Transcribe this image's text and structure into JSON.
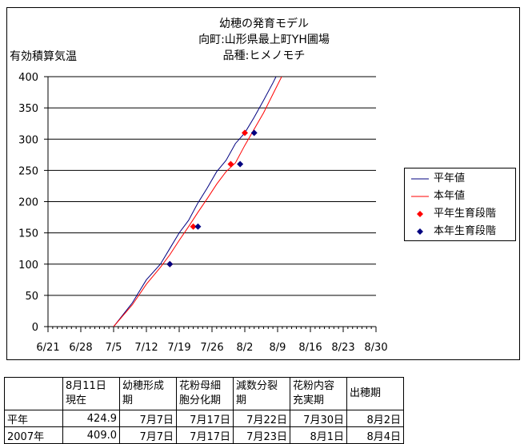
{
  "chart_data": {
    "type": "line",
    "title_lines": [
      "幼穂の発育モデル",
      "向町:山形県最上町YH圃場",
      "品種:ヒメノモチ"
    ],
    "ylabel": "有効積算気温",
    "xlabel": "",
    "ylim": [
      0,
      400
    ],
    "y_ticks": [
      0,
      50,
      100,
      150,
      200,
      250,
      300,
      350,
      400
    ],
    "x_tick_labels": [
      "6/21",
      "6/28",
      "7/5",
      "7/12",
      "7/19",
      "7/26",
      "8/2",
      "8/9",
      "8/16",
      "8/23",
      "8/30"
    ],
    "x_origin_date": "6/21",
    "x_range_days": [
      0,
      70
    ],
    "grid": true,
    "legend_position": "right",
    "series": [
      {
        "name": "平年値",
        "kind": "line",
        "color": "#000080",
        "x": [
          "7/5",
          "7/9",
          "7/12",
          "7/15",
          "7/17",
          "7/19",
          "7/21",
          "7/23",
          "7/25",
          "7/27",
          "7/29",
          "7/31",
          "8/2",
          "8/4",
          "8/6",
          "8/8",
          "8/9"
        ],
        "y": [
          0,
          38,
          75,
          100,
          125,
          150,
          170,
          198,
          222,
          248,
          266,
          293,
          310,
          335,
          362,
          390,
          405
        ]
      },
      {
        "name": "本年値",
        "kind": "line",
        "color": "#ff0000",
        "x": [
          "7/5",
          "7/9",
          "7/12",
          "7/15",
          "7/17",
          "7/19",
          "7/21",
          "7/23",
          "7/25",
          "7/27",
          "7/29",
          "7/31",
          "8/2",
          "8/4",
          "8/6",
          "8/8",
          "8/10"
        ],
        "y": [
          0,
          35,
          68,
          95,
          115,
          138,
          160,
          183,
          205,
          228,
          248,
          262,
          290,
          316,
          342,
          372,
          402
        ]
      },
      {
        "name": "平年生育段階",
        "kind": "marker",
        "color": "#ff0000",
        "x": [
          "7/17",
          "7/22",
          "7/30",
          "8/2"
        ],
        "y": [
          100,
          160,
          260,
          310
        ]
      },
      {
        "name": "本年生育段階",
        "kind": "marker",
        "color": "#000080",
        "x": [
          "7/17",
          "7/23",
          "8/1",
          "8/4"
        ],
        "y": [
          100,
          160,
          260,
          310
        ]
      }
    ]
  },
  "table": {
    "headers": [
      [
        "",
        ""
      ],
      [
        "8月11日",
        "現在"
      ],
      [
        "幼穂形成",
        "期"
      ],
      [
        "花粉母細",
        "胞分化期"
      ],
      [
        "減数分裂",
        "期"
      ],
      [
        "花粉内容",
        "充実期"
      ],
      [
        "出穂期",
        ""
      ]
    ],
    "rows": [
      [
        "平年",
        "424.9",
        "7月7日",
        "7月17日",
        "7月22日",
        "7月30日",
        "8月2日"
      ],
      [
        "2007年",
        "409.0",
        "7月7日",
        "7月17日",
        "7月23日",
        "8月1日",
        "8月4日"
      ]
    ]
  }
}
